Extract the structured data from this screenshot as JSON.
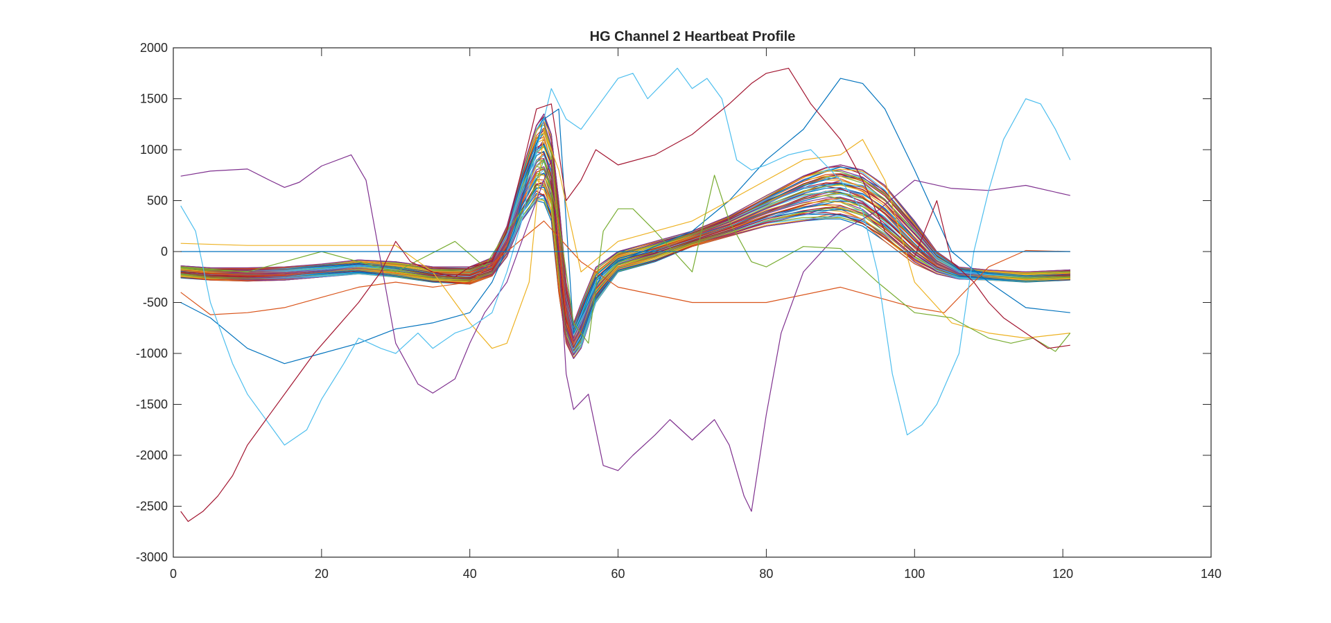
{
  "chart_data": {
    "type": "line",
    "title": "HG Channel 2 Heartbeat Profile",
    "xlabel": "",
    "ylabel": "",
    "xlim": [
      0,
      140
    ],
    "ylim": [
      -3000,
      2000
    ],
    "xticks": [
      0,
      20,
      40,
      60,
      80,
      100,
      120,
      140
    ],
    "yticks": [
      -3000,
      -2500,
      -2000,
      -1500,
      -1000,
      -500,
      0,
      500,
      1000,
      1500,
      2000
    ],
    "grid": false,
    "legend": "none",
    "palette": [
      "#0072BD",
      "#D95319",
      "#EDB120",
      "#7E2F8E",
      "#77AC30",
      "#4DBEEE",
      "#A2142F"
    ],
    "series": [
      {
        "x": [
          1,
          5,
          10,
          15,
          20,
          25,
          30,
          35,
          40,
          43,
          46,
          48,
          50,
          52,
          54,
          56,
          58,
          60,
          65,
          70,
          75,
          80,
          85,
          88,
          90,
          93,
          96,
          100,
          105,
          110,
          115,
          121
        ],
        "values": [
          -500,
          -650,
          -950,
          -1100,
          -1000,
          -900,
          -760,
          -700,
          -600,
          -300,
          200,
          800,
          1300,
          1400,
          -800,
          -500,
          -200,
          -100,
          50,
          200,
          500,
          900,
          1200,
          1500,
          1700,
          1650,
          1400,
          800,
          0,
          -300,
          -550,
          -600
        ],
        "color": "#0072BD"
      },
      {
        "x": [
          1,
          5,
          10,
          15,
          20,
          25,
          30,
          35,
          40,
          45,
          50,
          55,
          60,
          70,
          80,
          90,
          100,
          104,
          110,
          115,
          121
        ],
        "values": [
          -400,
          -620,
          -600,
          -550,
          -450,
          -350,
          -300,
          -350,
          -300,
          0,
          300,
          -100,
          -350,
          -500,
          -500,
          -350,
          -550,
          -600,
          -150,
          10,
          0
        ],
        "color": "#D95319"
      },
      {
        "x": [
          1,
          10,
          20,
          30,
          35,
          40,
          43,
          45,
          48,
          50,
          52,
          55,
          60,
          70,
          80,
          85,
          90,
          93,
          96,
          100,
          105,
          110,
          115,
          121
        ],
        "values": [
          80,
          60,
          60,
          60,
          -200,
          -700,
          -950,
          -900,
          -300,
          1200,
          800,
          -200,
          100,
          300,
          700,
          900,
          950,
          1100,
          700,
          -300,
          -700,
          -800,
          -850,
          -800
        ],
        "color": "#EDB120"
      },
      {
        "x": [
          1,
          5,
          10,
          13,
          15,
          17,
          20,
          24,
          26,
          28,
          30,
          33,
          35,
          38,
          40,
          42,
          45,
          47,
          49,
          51,
          52,
          53,
          54,
          56,
          58,
          60,
          62,
          65,
          67,
          70,
          73,
          75,
          77,
          78,
          80,
          82,
          85,
          90,
          95,
          100,
          105,
          110,
          115,
          121
        ],
        "values": [
          740,
          790,
          810,
          700,
          630,
          680,
          840,
          950,
          700,
          -100,
          -900,
          -1300,
          -1390,
          -1250,
          -900,
          -600,
          -300,
          100,
          500,
          900,
          0,
          -1200,
          -1550,
          -1400,
          -2100,
          -2150,
          -2000,
          -1800,
          -1650,
          -1850,
          -1650,
          -1900,
          -2400,
          -2550,
          -1600,
          -800,
          -200,
          200,
          400,
          700,
          620,
          600,
          650,
          550
        ],
        "color": "#7E2F8E"
      },
      {
        "x": [
          1,
          10,
          20,
          30,
          38,
          42,
          45,
          48,
          50,
          52,
          54,
          56,
          58,
          60,
          62,
          65,
          70,
          73,
          75,
          78,
          80,
          85,
          90,
          95,
          100,
          105,
          110,
          113,
          116,
          119,
          121
        ],
        "values": [
          -150,
          -200,
          0,
          -200,
          100,
          -150,
          200,
          500,
          900,
          300,
          -700,
          -900,
          200,
          420,
          420,
          200,
          -200,
          750,
          300,
          -100,
          -150,
          50,
          30,
          -300,
          -600,
          -650,
          -850,
          -900,
          -850,
          -980,
          -800
        ],
        "color": "#77AC30"
      },
      {
        "x": [
          1,
          3,
          5,
          8,
          10,
          13,
          15,
          18,
          20,
          23,
          25,
          28,
          30,
          33,
          35,
          38,
          40,
          43,
          45,
          47,
          49,
          51,
          53,
          55,
          57,
          60,
          62,
          64,
          66,
          68,
          70,
          72,
          74,
          76,
          78,
          80,
          83,
          86,
          90,
          93,
          95,
          97,
          99,
          101,
          103,
          106,
          108,
          110,
          112,
          115,
          117,
          119,
          121
        ],
        "values": [
          450,
          200,
          -500,
          -1100,
          -1400,
          -1700,
          -1900,
          -1750,
          -1450,
          -1100,
          -850,
          -950,
          -1000,
          -800,
          -950,
          -800,
          -750,
          -600,
          -200,
          300,
          1000,
          1600,
          1300,
          1200,
          1400,
          1700,
          1750,
          1500,
          1650,
          1800,
          1600,
          1700,
          1500,
          900,
          800,
          850,
          950,
          1000,
          700,
          400,
          -200,
          -1200,
          -1800,
          -1700,
          -1500,
          -1000,
          0,
          600,
          1100,
          1500,
          1450,
          1200,
          900
        ],
        "color": "#4DBEEE"
      },
      {
        "x": [
          1,
          2,
          4,
          6,
          8,
          10,
          13,
          16,
          19,
          22,
          25,
          28,
          30,
          32,
          35,
          38,
          40,
          43,
          45,
          47,
          49,
          51,
          53,
          55,
          57,
          60,
          65,
          70,
          75,
          78,
          80,
          83,
          86,
          90,
          93,
          96,
          100,
          103,
          105,
          108,
          110,
          112,
          115,
          118,
          121
        ],
        "values": [
          -2550,
          -2650,
          -2550,
          -2400,
          -2200,
          -1900,
          -1600,
          -1300,
          -1000,
          -750,
          -500,
          -200,
          100,
          -100,
          -200,
          -250,
          -150,
          -100,
          200,
          800,
          1400,
          1450,
          500,
          700,
          1000,
          850,
          950,
          1150,
          1450,
          1650,
          1750,
          1800,
          1450,
          1100,
          700,
          200,
          -50,
          500,
          -100,
          -300,
          -500,
          -650,
          -800,
          -950,
          -920
        ],
        "color": "#A2142F"
      },
      {
        "x": [
          1,
          121
        ],
        "values": [
          0,
          0
        ],
        "color": "#0072BD"
      }
    ],
    "band": {
      "count": 60,
      "x": [
        1,
        5,
        10,
        15,
        20,
        25,
        30,
        35,
        40,
        43,
        45,
        47,
        49,
        50,
        51,
        52,
        53,
        54,
        55,
        57,
        60,
        65,
        70,
        75,
        80,
        85,
        88,
        90,
        93,
        96,
        100,
        103,
        106,
        110,
        115,
        121
      ],
      "upper": [
        -140,
        -160,
        -160,
        -150,
        -120,
        -80,
        -100,
        -150,
        -150,
        -60,
        250,
        800,
        1250,
        1350,
        1150,
        500,
        -300,
        -700,
        -500,
        -150,
        0,
        100,
        200,
        350,
        550,
        750,
        830,
        850,
        800,
        650,
        300,
        0,
        -150,
        -180,
        -200,
        -180
      ],
      "lower": [
        -260,
        -280,
        -290,
        -280,
        -250,
        -220,
        -250,
        -300,
        -320,
        -240,
        -50,
        300,
        500,
        480,
        300,
        -400,
        -900,
        -1050,
        -950,
        -500,
        -200,
        -100,
        50,
        150,
        250,
        300,
        320,
        320,
        250,
        100,
        -120,
        -220,
        -270,
        -280,
        -300,
        -280
      ]
    }
  }
}
